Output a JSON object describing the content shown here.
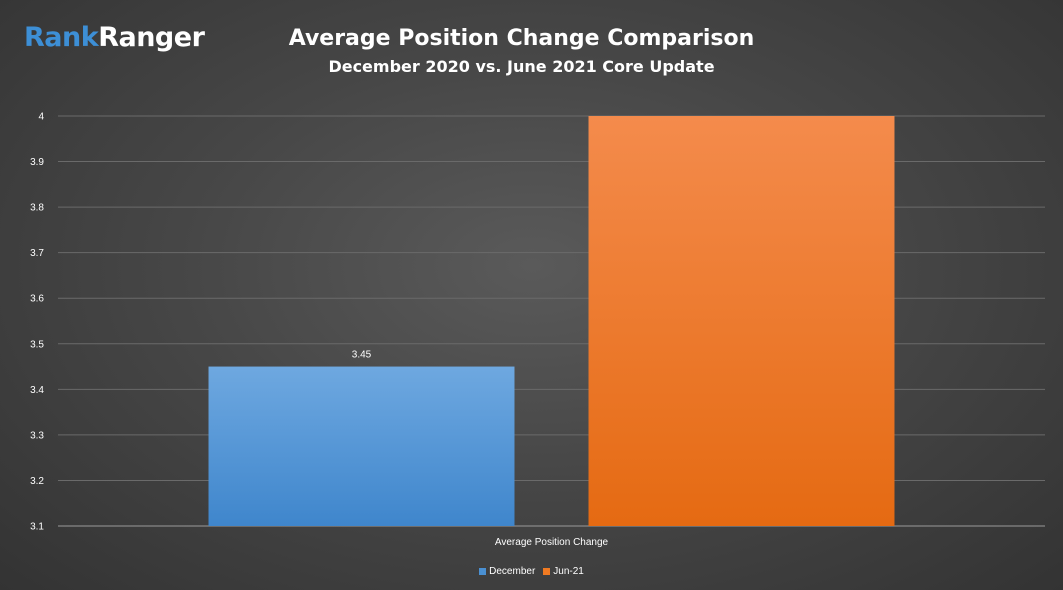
{
  "logo": {
    "part1": "Rank",
    "part2": "Ranger"
  },
  "chart_data": {
    "type": "bar",
    "title": "Average Position Change Comparison",
    "subtitle": "December 2020 vs. June 2021 Core Update",
    "categories": [
      "Average Position Change"
    ],
    "xlabel": "Average Position Change",
    "ylabel": "",
    "ylim": [
      3.1,
      4.0
    ],
    "yticks": [
      "3.1",
      "3.2",
      "3.3",
      "3.4",
      "3.5",
      "3.6",
      "3.7",
      "3.8",
      "3.9",
      "4"
    ],
    "grid": true,
    "legend_position": "bottom",
    "series": [
      {
        "name": "December",
        "values": [
          3.45
        ],
        "color": "#4a90d2",
        "data_label": "3.45"
      },
      {
        "name": "Jun-21",
        "values": [
          4.0
        ],
        "color": "#f07a22"
      }
    ]
  }
}
